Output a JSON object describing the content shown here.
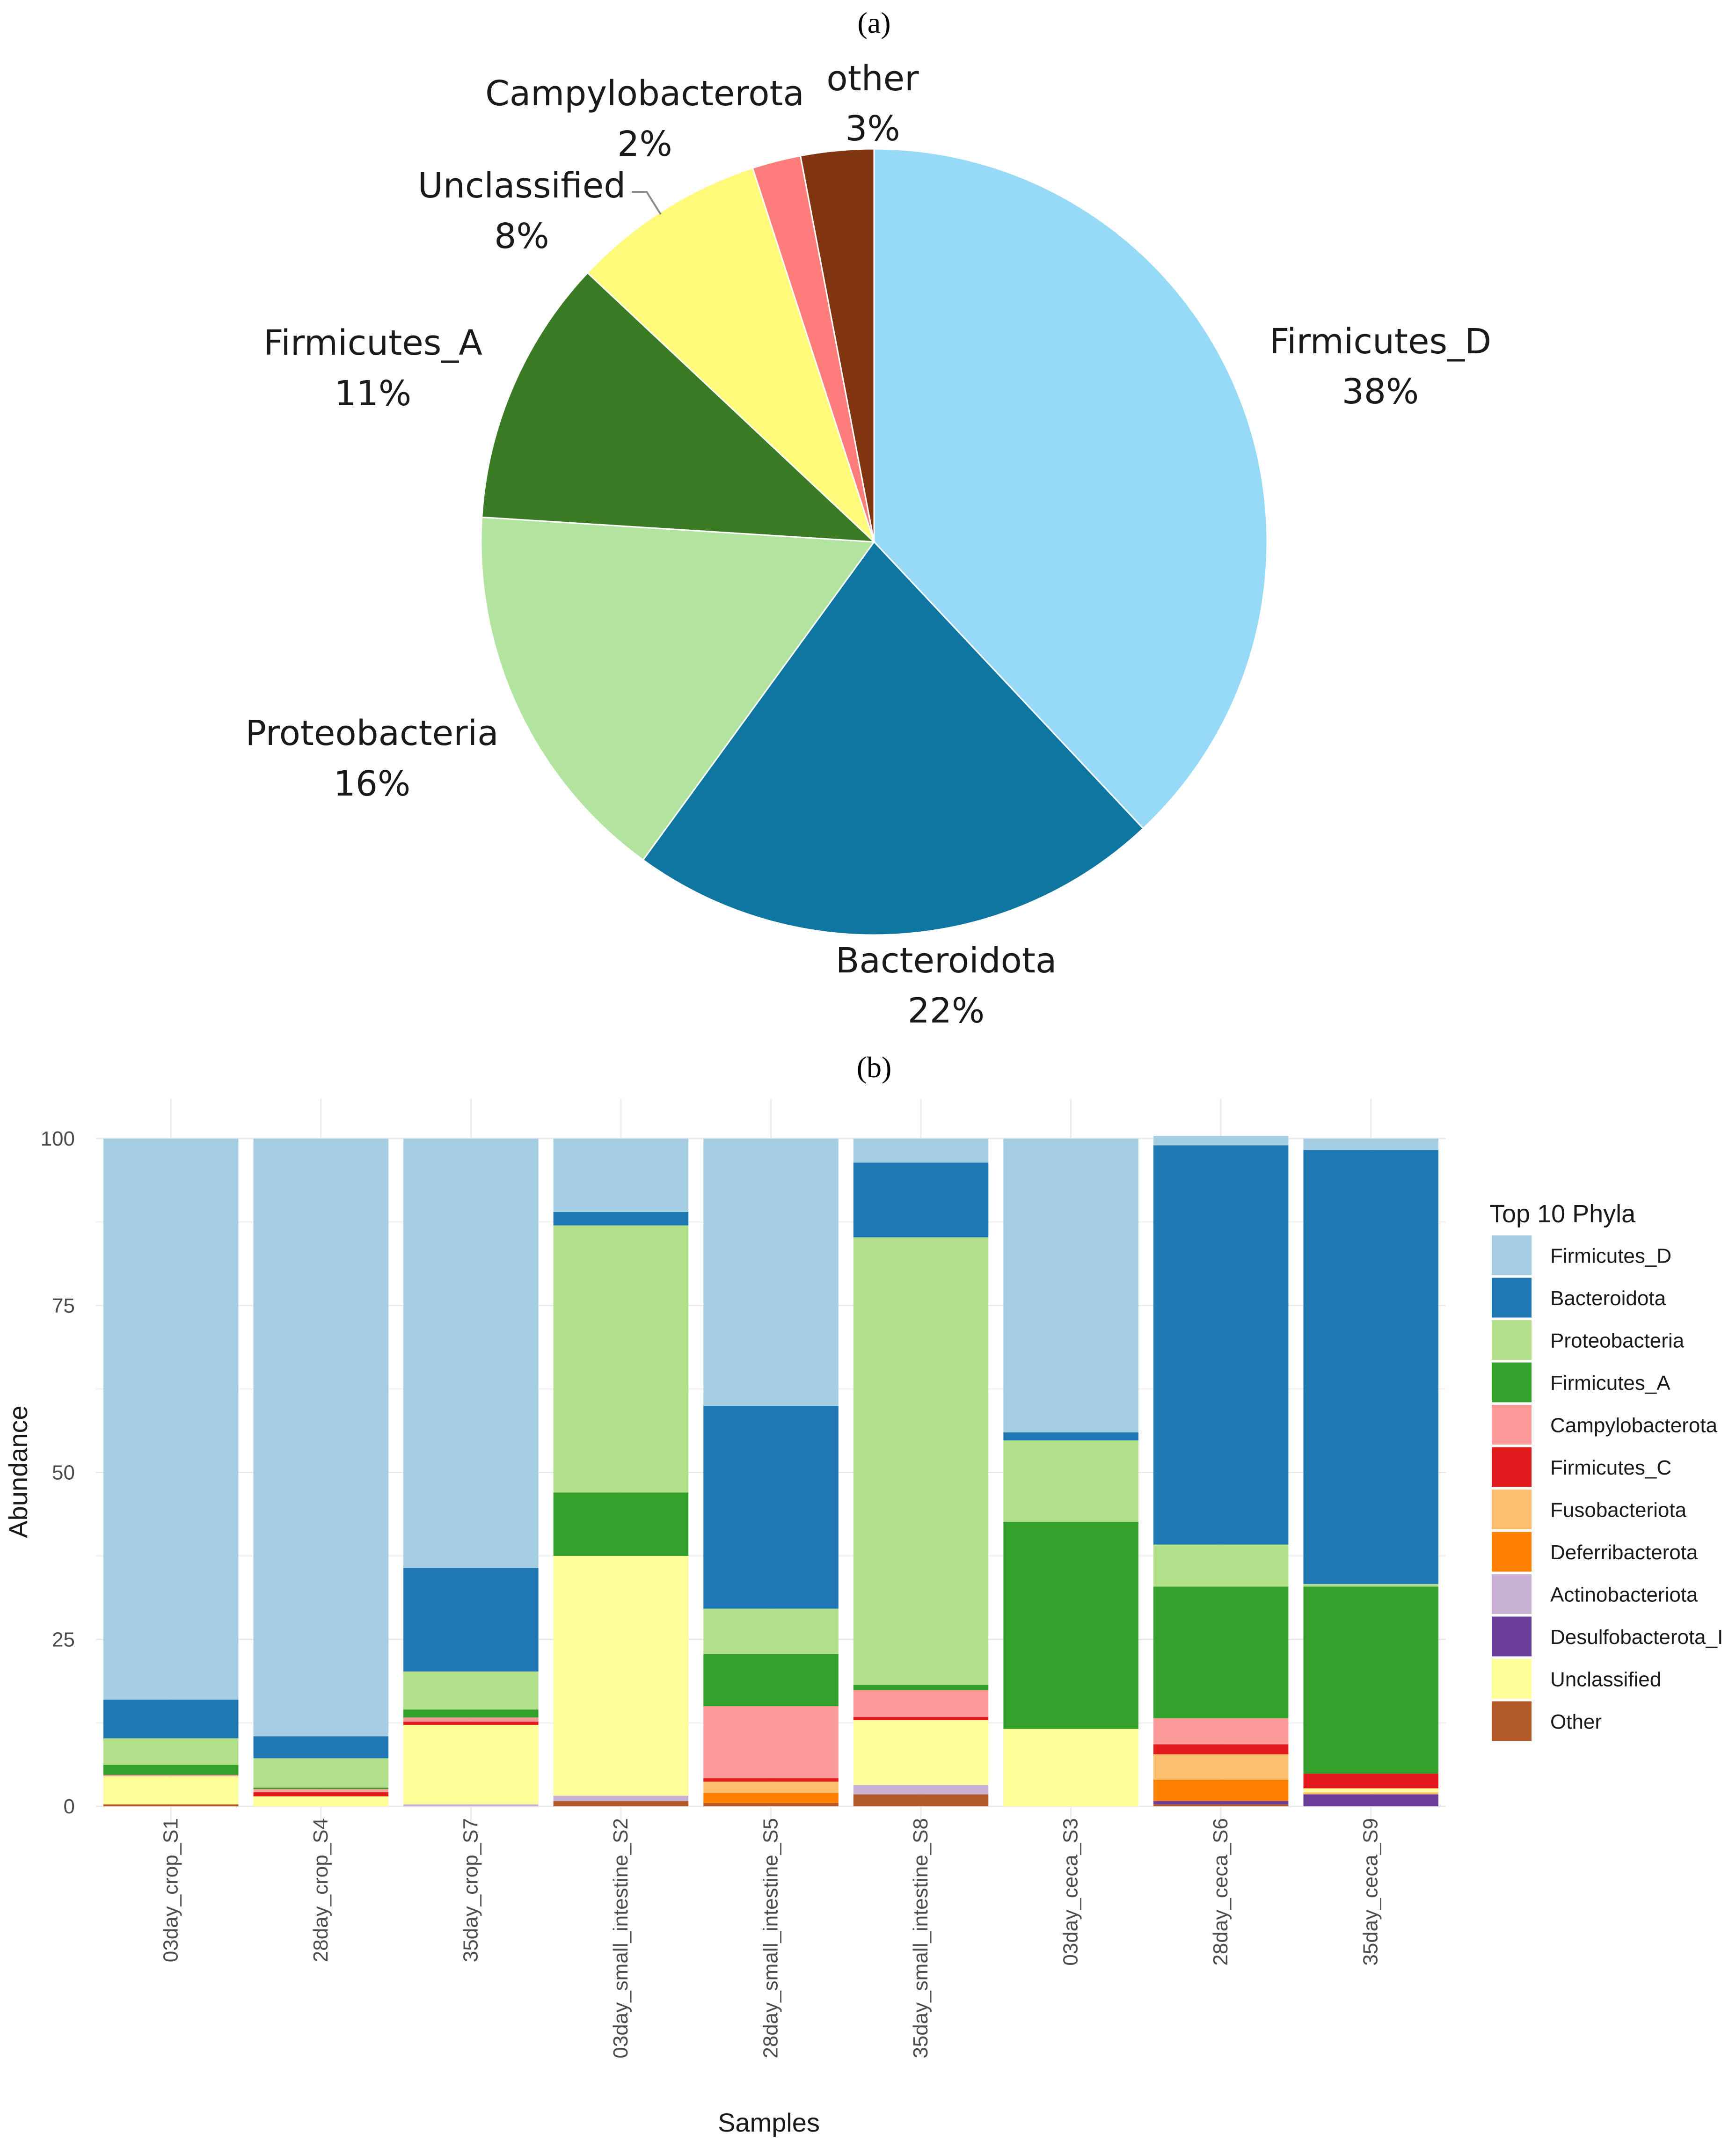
{
  "chart_data": [
    {
      "type": "pie",
      "panel_label": "(a)",
      "title": "",
      "slices": [
        {
          "name": "Firmicutes_D",
          "label": "Firmicutes_D",
          "pct_label": "38%",
          "value": 38,
          "color": "#97DAF7"
        },
        {
          "name": "Bacteroidota",
          "label": "Bacteroidota",
          "pct_label": "22%",
          "value": 22,
          "color": "#0E76A0"
        },
        {
          "name": "Proteobacteria",
          "label": "Proteobacteria",
          "pct_label": "16%",
          "value": 16,
          "color": "#B3E49F"
        },
        {
          "name": "Firmicutes_A",
          "label": "Firmicutes_A",
          "pct_label": "11%",
          "value": 11,
          "color": "#3A7B24"
        },
        {
          "name": "Unclassified",
          "label": "Unclassified",
          "pct_label": "8%",
          "value": 8,
          "color": "#FFFA7A"
        },
        {
          "name": "Campylobacterota",
          "label": "Campylobacterota",
          "pct_label": "2%",
          "value": 2,
          "color": "#FF7E7B"
        },
        {
          "name": "other",
          "label": "other",
          "pct_label": "3%",
          "value": 3,
          "color": "#813410"
        }
      ]
    },
    {
      "type": "bar",
      "stacked": true,
      "panel_label": "(b)",
      "title": "",
      "xlabel": "Samples",
      "ylabel": "Abundance",
      "ylim": [
        0,
        100
      ],
      "yticks": [
        "0",
        "25",
        "50",
        "75",
        "100"
      ],
      "grid": true,
      "legend_title": "Top 10 Phyla",
      "legend_position": "right",
      "categories": [
        "03day_crop_S1",
        "28day_crop_S4",
        "35day_crop_S7",
        "03day_small_intestine_S2",
        "28day_small_intestine_S5",
        "35day_small_intestine_S8",
        "03day_ceca_S3",
        "28day_ceca_S6",
        "35day_ceca_S9"
      ],
      "stack_order_bottom_to_top": [
        "Other",
        "Desulfobacterota_I",
        "Deferribacterota",
        "Fusobacteriota",
        "Actinobacteriota",
        "Unclassified",
        "Firmicutes_C",
        "Campylobacterota",
        "Firmicutes_A",
        "Proteobacteria",
        "Bacteroidota",
        "Firmicutes_D"
      ],
      "series": [
        {
          "name": "Firmicutes_D",
          "color": "#A6CEE3",
          "values": [
            84.0,
            89.5,
            64.3,
            11.0,
            40.0,
            3.6,
            44.0,
            1.4,
            1.7
          ]
        },
        {
          "name": "Bacteroidota",
          "color": "#1F78B4",
          "values": [
            5.8,
            3.3,
            15.5,
            2.0,
            30.4,
            11.2,
            1.2,
            59.8,
            65.0
          ]
        },
        {
          "name": "Proteobacteria",
          "color": "#B2DF8A",
          "values": [
            4.0,
            4.4,
            5.7,
            40.0,
            6.8,
            67.0,
            12.2,
            6.3,
            0.4
          ]
        },
        {
          "name": "Firmicutes_A",
          "color": "#33A02C",
          "values": [
            1.5,
            0.2,
            1.2,
            9.5,
            7.8,
            0.8,
            31.0,
            19.7,
            28.0
          ]
        },
        {
          "name": "Campylobacterota",
          "color": "#FB9A99",
          "values": [
            0.2,
            0.5,
            0.6,
            0.0,
            10.8,
            4.0,
            0.0,
            3.9,
            0.0
          ]
        },
        {
          "name": "Firmicutes_C",
          "color": "#E31A1C",
          "values": [
            0.0,
            0.6,
            0.5,
            0.0,
            0.5,
            0.5,
            0.0,
            1.5,
            2.2
          ]
        },
        {
          "name": "Fusobacteriota",
          "color": "#FDBF6F",
          "values": [
            0.0,
            0.0,
            0.0,
            0.0,
            1.7,
            0.0,
            0.0,
            3.8,
            0.3
          ]
        },
        {
          "name": "Deferribacterota",
          "color": "#FF7F00",
          "values": [
            0.0,
            0.0,
            0.0,
            0.0,
            1.5,
            0.0,
            0.0,
            3.2,
            0.0
          ]
        },
        {
          "name": "Actinobacteriota",
          "color": "#CAB2D6",
          "values": [
            0.0,
            0.0,
            0.3,
            0.8,
            0.0,
            1.4,
            0.0,
            0.0,
            0.0
          ]
        },
        {
          "name": "Desulfobacterota_I",
          "color": "#6A3D9A",
          "values": [
            0.0,
            0.0,
            0.0,
            0.0,
            0.0,
            0.0,
            0.0,
            0.5,
            1.8
          ]
        },
        {
          "name": "Unclassified",
          "color": "#FFFF99",
          "values": [
            4.2,
            1.5,
            11.9,
            35.9,
            0.0,
            9.7,
            11.6,
            0.0,
            0.6
          ]
        },
        {
          "name": "Other",
          "color": "#B15928",
          "values": [
            0.3,
            0.0,
            0.0,
            0.8,
            0.5,
            1.8,
            0.0,
            0.3,
            0.0
          ]
        }
      ]
    }
  ]
}
